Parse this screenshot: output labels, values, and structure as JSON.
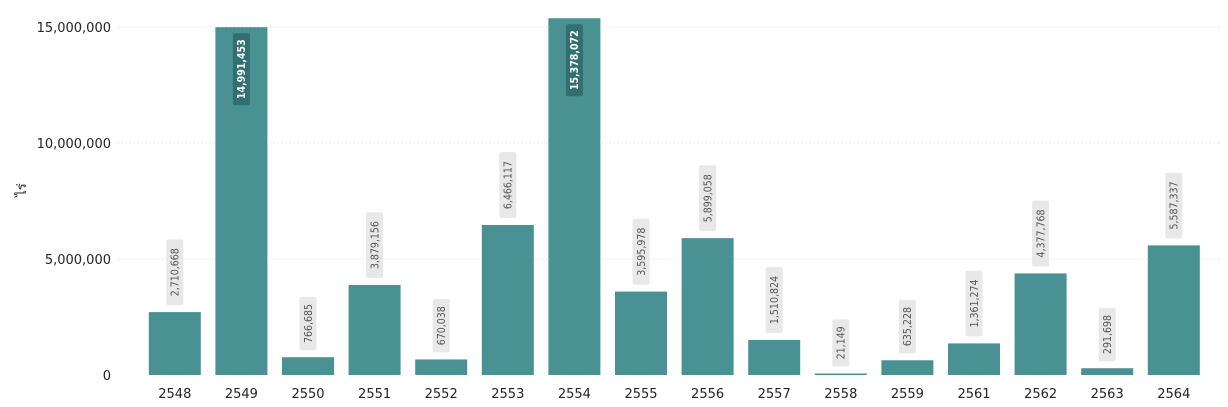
{
  "chart_data": {
    "type": "bar",
    "title": "",
    "xlabel": "",
    "ylabel": "ไร่",
    "ylim": [
      0,
      15000000
    ],
    "y_ticks": [
      "0",
      "5,000,000",
      "10,000,000",
      "15,000,000"
    ],
    "y_tick_values": [
      0,
      5000000,
      10000000,
      15000000
    ],
    "grid": true,
    "bar_color": "#4a9193",
    "label_bg_color": "#e8e8e8",
    "categories": [
      "2548",
      "2549",
      "2550",
      "2551",
      "2552",
      "2553",
      "2554",
      "2555",
      "2556",
      "2557",
      "2558",
      "2559",
      "2561",
      "2562",
      "2563",
      "2564"
    ],
    "values": [
      2710668,
      14991453,
      766685,
      3879156,
      670038,
      6466117,
      15378072,
      3595978,
      5899058,
      1510824,
      21149,
      635228,
      1361274,
      4377768,
      291698,
      5587337
    ],
    "data_labels": [
      "2,710,668",
      "14,991,453",
      "766,685",
      "3,879,156",
      "670,038",
      "6,466,117",
      "15,378,072",
      "3,595,978",
      "5,899,058",
      "1,510,824",
      "21,149",
      "635,228",
      "1,361,274",
      "4,377,768",
      "291,698",
      "5,587,337"
    ]
  }
}
